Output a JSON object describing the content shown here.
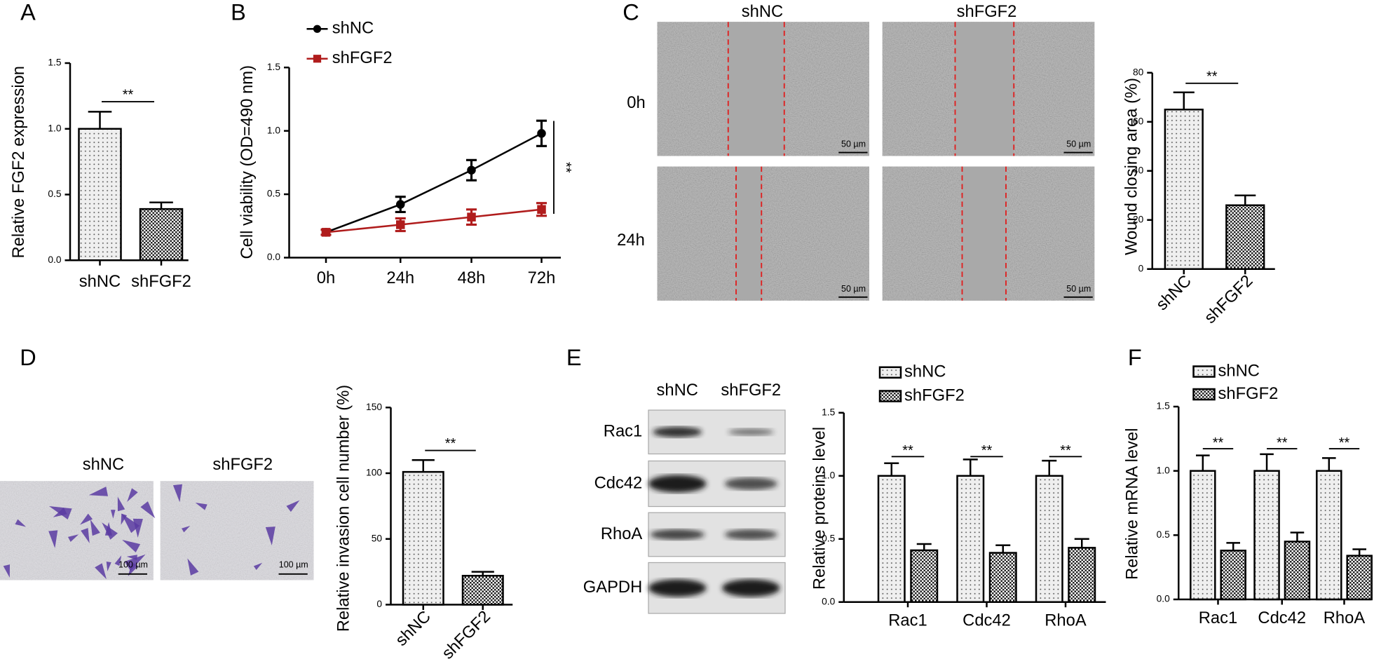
{
  "chart_data": [
    {
      "type": "bar",
      "panel": "A",
      "y_label": "Relative FGF2 expression",
      "categories": [
        "shNC",
        "shFGF2"
      ],
      "values": [
        1.0,
        0.39
      ],
      "errors": [
        0.13,
        0.05
      ],
      "ylim": [
        0,
        1.5
      ],
      "yticks": [
        {
          "value": 0,
          "label": "0.0"
        },
        0.5,
        {
          "value": 1,
          "label": "1.0"
        },
        1.5
      ],
      "significance": "**"
    },
    {
      "type": "line",
      "panel": "B",
      "y_label": "Cell viability (OD=490 nm)",
      "categories": [
        "0h",
        "24h",
        "48h",
        "72h"
      ],
      "series": [
        {
          "name": "shNC",
          "color": "#000000",
          "values": [
            0.2,
            0.42,
            0.69,
            0.98
          ],
          "errors": [
            0.02,
            0.06,
            0.08,
            0.1
          ]
        },
        {
          "name": "shFGF2",
          "color": "#b01c1c",
          "values": [
            0.2,
            0.26,
            0.32,
            0.38
          ],
          "errors": [
            0.02,
            0.05,
            0.06,
            0.05
          ]
        }
      ],
      "ylim": [
        0,
        1.5
      ],
      "yticks": [
        {
          "value": 0,
          "label": "0.0"
        },
        0.5,
        {
          "value": 1,
          "label": "1.0"
        },
        1.5
      ],
      "significance": "**"
    },
    {
      "type": "bar",
      "panel": "C",
      "y_label": "Wound closing area (%)",
      "image_columns": [
        "shNC",
        "shFGF2"
      ],
      "image_rows": [
        "0h",
        "24h"
      ],
      "scale_bars": [
        "50 µm",
        "50 µm",
        "50 µm",
        "50 µm"
      ],
      "categories": [
        "shNC",
        "shFGF2"
      ],
      "values": [
        65,
        26
      ],
      "errors": [
        7,
        4
      ],
      "ylim": [
        0,
        80
      ],
      "yticks": [
        0,
        20,
        40,
        60,
        80
      ],
      "significance": "**"
    },
    {
      "type": "bar",
      "panel": "D",
      "y_label": "Relative invasion cell number (%)",
      "image_columns": [
        "shNC",
        "shFGF2"
      ],
      "scale_bars": [
        "100 µm",
        "100 µm"
      ],
      "categories": [
        "shNC",
        "shFGF2"
      ],
      "values": [
        101,
        22
      ],
      "errors": [
        9,
        3
      ],
      "ylim": [
        0,
        150
      ],
      "yticks": [
        0,
        50,
        100,
        150
      ],
      "significance": "**"
    },
    {
      "type": "bar",
      "panel": "E",
      "y_label": "Relative proteins level",
      "blot_lanes": [
        "shNC",
        "shFGF2"
      ],
      "blot_rows": [
        "Rac1",
        "Cdc42",
        "RhoA",
        "GAPDH"
      ],
      "categories": [
        "Rac1",
        "Cdc42",
        "RhoA"
      ],
      "series": [
        {
          "name": "shNC",
          "values": [
            1.0,
            1.0,
            1.0
          ],
          "errors": [
            0.1,
            0.13,
            0.12
          ]
        },
        {
          "name": "shFGF2",
          "values": [
            0.41,
            0.39,
            0.43
          ],
          "errors": [
            0.05,
            0.06,
            0.07
          ]
        }
      ],
      "ylim": [
        0,
        1.5
      ],
      "yticks": [
        {
          "value": 0,
          "label": "0.0"
        },
        0.5,
        {
          "value": 1,
          "label": "1.0"
        },
        1.5
      ],
      "significance": [
        "**",
        "**",
        "**"
      ]
    },
    {
      "type": "bar",
      "panel": "F",
      "y_label": "Relative mRNA level",
      "categories": [
        "Rac1",
        "Cdc42",
        "RhoA"
      ],
      "series": [
        {
          "name": "shNC",
          "values": [
            1.0,
            1.0,
            1.0
          ],
          "errors": [
            0.12,
            0.13,
            0.1
          ]
        },
        {
          "name": "shFGF2",
          "values": [
            0.38,
            0.45,
            0.34
          ],
          "errors": [
            0.06,
            0.07,
            0.05
          ]
        }
      ],
      "ylim": [
        0,
        1.5
      ],
      "yticks": [
        {
          "value": 0,
          "label": "0.0"
        },
        0.5,
        {
          "value": 1,
          "label": "1.0"
        },
        1.5
      ],
      "significance": [
        "**",
        "**",
        "**"
      ]
    }
  ]
}
